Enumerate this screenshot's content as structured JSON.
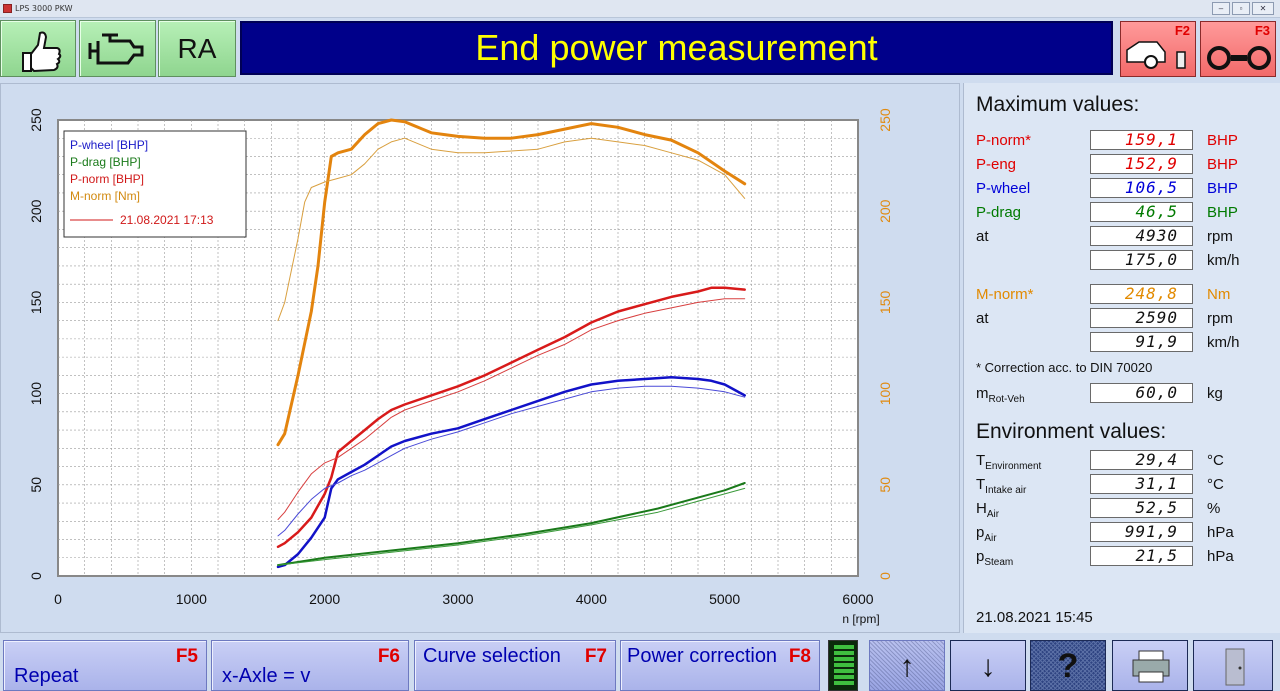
{
  "window": {
    "title": "LPS 3000 PKW"
  },
  "toolbar": {
    "ok_icon": "thumbs-up-icon",
    "engine_icon": "engine-icon",
    "ra_label": "RA",
    "f2_label": "F2",
    "f2_icon": "car-wheel-icon",
    "f3_label": "F3",
    "f3_icon": "rollers-icon"
  },
  "header": {
    "title": "End power measurement"
  },
  "max_values": {
    "heading": "Maximum values:",
    "rows": [
      {
        "label": "P-norm*",
        "value": "159,1",
        "unit": "BHP",
        "color": "#e00000"
      },
      {
        "label": "P-eng",
        "value": "152,9",
        "unit": "BHP",
        "color": "#e00000"
      },
      {
        "label": "P-wheel",
        "value": "106,5",
        "unit": "BHP",
        "color": "#0000d8"
      },
      {
        "label": "P-drag",
        "value": "46,5",
        "unit": "BHP",
        "color": "#007a00"
      },
      {
        "label": "at",
        "value": "4930",
        "unit": "rpm",
        "color": "#111111"
      },
      {
        "label": "",
        "value": "175,0",
        "unit": "km/h",
        "color": "#111111"
      },
      {
        "label": "M-norm*",
        "value": "248,8",
        "unit": "Nm",
        "color": "#e28a00"
      },
      {
        "label": "at",
        "value": "2590",
        "unit": "rpm",
        "color": "#111111"
      },
      {
        "label": "",
        "value": "91,9",
        "unit": "km/h",
        "color": "#111111"
      }
    ],
    "note": "* Correction acc. to DIN 70020",
    "mass": {
      "label": "m",
      "sub": "Rot-Veh",
      "value": "60,0",
      "unit": "kg"
    }
  },
  "environment": {
    "heading": "Environment values:",
    "rows": [
      {
        "label": "T",
        "sub": "Environment",
        "value": "29,4",
        "unit": "°C"
      },
      {
        "label": "T",
        "sub": "Intake air",
        "value": "31,1",
        "unit": "°C"
      },
      {
        "label": "H",
        "sub": "Air",
        "value": "52,5",
        "unit": "%"
      },
      {
        "label": "p",
        "sub": "Air",
        "value": "991,9",
        "unit": "hPa"
      },
      {
        "label": "p",
        "sub": "Steam",
        "value": "21,5",
        "unit": "hPa"
      }
    ]
  },
  "datetime": "21.08.2021   15:45",
  "bottom_bar": {
    "repeat": {
      "label": "Repeat",
      "key": "F5"
    },
    "xaxle": {
      "label": "x-Axle = v",
      "key": "F6"
    },
    "curve": {
      "label": "Curve selection",
      "key": "F7"
    },
    "power": {
      "label": "Power correction",
      "key": "F8"
    },
    "up_icon": "arrow-up-icon",
    "down_icon": "arrow-down-icon",
    "help_icon": "help-icon",
    "print_icon": "printer-icon",
    "exit_icon": "door-icon"
  },
  "chart_data": {
    "type": "line",
    "xlabel": "n [rpm]",
    "xlim": [
      0,
      6000
    ],
    "ylim_left": [
      0,
      250
    ],
    "ylim_right": [
      0,
      250
    ],
    "x_ticks": [
      "0",
      "1000",
      "2000",
      "3000",
      "4000",
      "5000",
      "6000"
    ],
    "y_ticks_left": [
      "0",
      "50",
      "100",
      "150",
      "200",
      "250"
    ],
    "y_ticks_right": [
      "0",
      "50",
      "100",
      "150",
      "200",
      "250"
    ],
    "grid": true,
    "legend_position": "top-left",
    "legend": [
      {
        "name": "P-wheel [BHP]",
        "color": "#1a1ac8"
      },
      {
        "name": "P-drag [BHP]",
        "color": "#1a7a1a"
      },
      {
        "name": "P-norm [BHP]",
        "color": "#d01818"
      },
      {
        "name": "M-norm [Nm]",
        "color": "#d28a10"
      },
      {
        "name": "21.08.2021 17:13",
        "color": "#d01818"
      }
    ],
    "series": [
      {
        "name": "M-norm [Nm]",
        "color": "#e3840e",
        "width": 3,
        "x": [
          1650,
          1700,
          1800,
          1900,
          1950,
          2000,
          2050,
          2100,
          2200,
          2300,
          2400,
          2500,
          2600,
          2700,
          2800,
          2900,
          3000,
          3200,
          3400,
          3600,
          3800,
          4000,
          4200,
          4400,
          4600,
          4800,
          5000,
          5150
        ],
        "y": [
          72,
          78,
          110,
          145,
          170,
          205,
          230,
          232,
          234,
          242,
          248,
          250,
          249,
          246,
          243,
          242,
          241,
          240,
          240,
          242,
          245,
          248,
          246,
          242,
          239,
          232,
          222,
          215
        ]
      },
      {
        "name": "P-norm [BHP]",
        "color": "#d81a1a",
        "width": 2.5,
        "x": [
          1650,
          1700,
          1800,
          1900,
          2000,
          2050,
          2100,
          2200,
          2300,
          2400,
          2500,
          2600,
          2800,
          3000,
          3200,
          3400,
          3600,
          3800,
          4000,
          4200,
          4400,
          4600,
          4800,
          4900,
          5000,
          5150
        ],
        "y": [
          16,
          18,
          24,
          32,
          45,
          54,
          68,
          74,
          80,
          86,
          91,
          94,
          99,
          104,
          110,
          117,
          124,
          131,
          139,
          145,
          149,
          153,
          156,
          158,
          158,
          157
        ]
      },
      {
        "name": "P-wheel [BHP]",
        "color": "#1212c8",
        "width": 2.5,
        "x": [
          1650,
          1700,
          1800,
          1900,
          2000,
          2050,
          2100,
          2200,
          2300,
          2400,
          2500,
          2600,
          2800,
          3000,
          3200,
          3400,
          3600,
          3800,
          4000,
          4200,
          4400,
          4600,
          4800,
          4900,
          5000,
          5150
        ],
        "y": [
          5,
          6,
          12,
          21,
          32,
          48,
          53,
          57,
          61,
          66,
          71,
          74,
          78,
          81,
          86,
          91,
          96,
          101,
          105,
          107,
          108,
          109,
          108,
          107,
          105,
          99
        ]
      },
      {
        "name": "P-drag [BHP]",
        "color": "#1a7a1a",
        "width": 2,
        "x": [
          1650,
          2000,
          2500,
          3000,
          3500,
          4000,
          4500,
          5000,
          5150
        ],
        "y": [
          6,
          10,
          14,
          18,
          23,
          29,
          37,
          47,
          51
        ]
      },
      {
        "name": "M-norm 21.08.2021 17:13",
        "color": "#d9a040",
        "width": 1,
        "x": [
          1650,
          1700,
          1800,
          1850,
          1900,
          2000,
          2100,
          2200,
          2300,
          2400,
          2500,
          2600,
          2700,
          2800,
          3000,
          3200,
          3400,
          3600,
          3800,
          4000,
          4200,
          4400,
          4600,
          4800,
          5000,
          5150
        ],
        "y": [
          140,
          150,
          185,
          205,
          213,
          216,
          218,
          220,
          226,
          234,
          238,
          240,
          237,
          234,
          232,
          232,
          233,
          234,
          238,
          240,
          238,
          236,
          232,
          228,
          220,
          207
        ]
      },
      {
        "name": "P-norm 21.08.2021 17:13",
        "color": "#d84040",
        "width": 1,
        "x": [
          1650,
          1700,
          1800,
          1900,
          2000,
          2100,
          2200,
          2300,
          2400,
          2500,
          2600,
          2800,
          3000,
          3200,
          3400,
          3600,
          3800,
          4000,
          4200,
          4400,
          4600,
          4800,
          5000,
          5150
        ],
        "y": [
          31,
          35,
          46,
          56,
          62,
          65,
          70,
          75,
          81,
          87,
          91,
          96,
          101,
          107,
          114,
          121,
          127,
          135,
          140,
          144,
          147,
          150,
          152,
          152
        ]
      },
      {
        "name": "P-wheel 21.08.2021 17:13",
        "color": "#4a4ad8",
        "width": 1,
        "x": [
          1650,
          1700,
          1800,
          1900,
          2000,
          2100,
          2200,
          2300,
          2400,
          2500,
          2600,
          2800,
          3000,
          3200,
          3400,
          3600,
          3800,
          4000,
          4200,
          4400,
          4600,
          4800,
          5000,
          5150
        ],
        "y": [
          22,
          25,
          34,
          42,
          48,
          51,
          55,
          58,
          62,
          66,
          70,
          75,
          79,
          84,
          89,
          93,
          97,
          101,
          103,
          104,
          104,
          103,
          101,
          98
        ]
      },
      {
        "name": "P-drag 21.08.2021 17:13",
        "color": "#3a9a3a",
        "width": 1,
        "x": [
          1650,
          2000,
          2500,
          3000,
          3500,
          4000,
          4500,
          5000,
          5150
        ],
        "y": [
          6,
          9,
          13,
          17,
          22,
          28,
          35,
          45,
          48
        ]
      }
    ]
  }
}
